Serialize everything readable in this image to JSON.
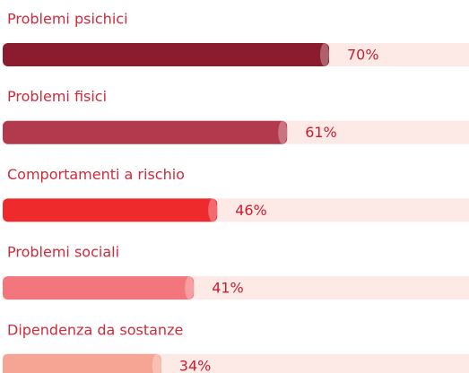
{
  "chart_data": {
    "type": "hbar",
    "categories": [
      "Problemi psichici",
      "Problemi fisici",
      "Comportamenti a rischio",
      "Problemi sociali",
      "Dipendenza da sostanze"
    ],
    "values": [
      70,
      61,
      46,
      41,
      34
    ],
    "value_labels": [
      "70%",
      "61%",
      "46%",
      "41%",
      "34%"
    ],
    "colors": [
      "#8b1c2f",
      "#b3394c",
      "#ee2a2d",
      "#f2767b",
      "#f6a493"
    ],
    "xlim": [
      0,
      100
    ]
  }
}
